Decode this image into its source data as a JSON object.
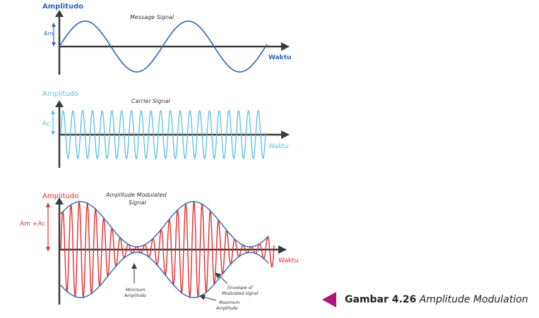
{
  "panels": {
    "message": {
      "ylabel": "Amplitudo",
      "xlabel": "Waktu",
      "title": "Message Signal",
      "amp_label": "Am",
      "color": "#2f66b3"
    },
    "carrier": {
      "ylabel": "Amplitudo",
      "xlabel": "Waktu",
      "title": "Carrier Signal",
      "amp_label": "Ac",
      "color": "#5bc0d8"
    },
    "am": {
      "ylabel": "Amplitudo",
      "xlabel": "Waktu",
      "title_line1": "Amplitude Modulated",
      "title_line2": "Signal",
      "amp_label": "Am +Ac",
      "color": "#e03030",
      "envelope_color": "#2f66b3",
      "annotations": {
        "min_line1": "Minimum",
        "min_line2": "Amplitudo",
        "env_line1": "Envelope of",
        "env_line2": "Modulated signal",
        "max_line1": "Maximum",
        "max_line2": "Amplitude"
      }
    }
  },
  "caption": {
    "label": "Gambar 4.26",
    "title": "Amplitude Modulation",
    "marker_color": "#b0157a"
  }
}
